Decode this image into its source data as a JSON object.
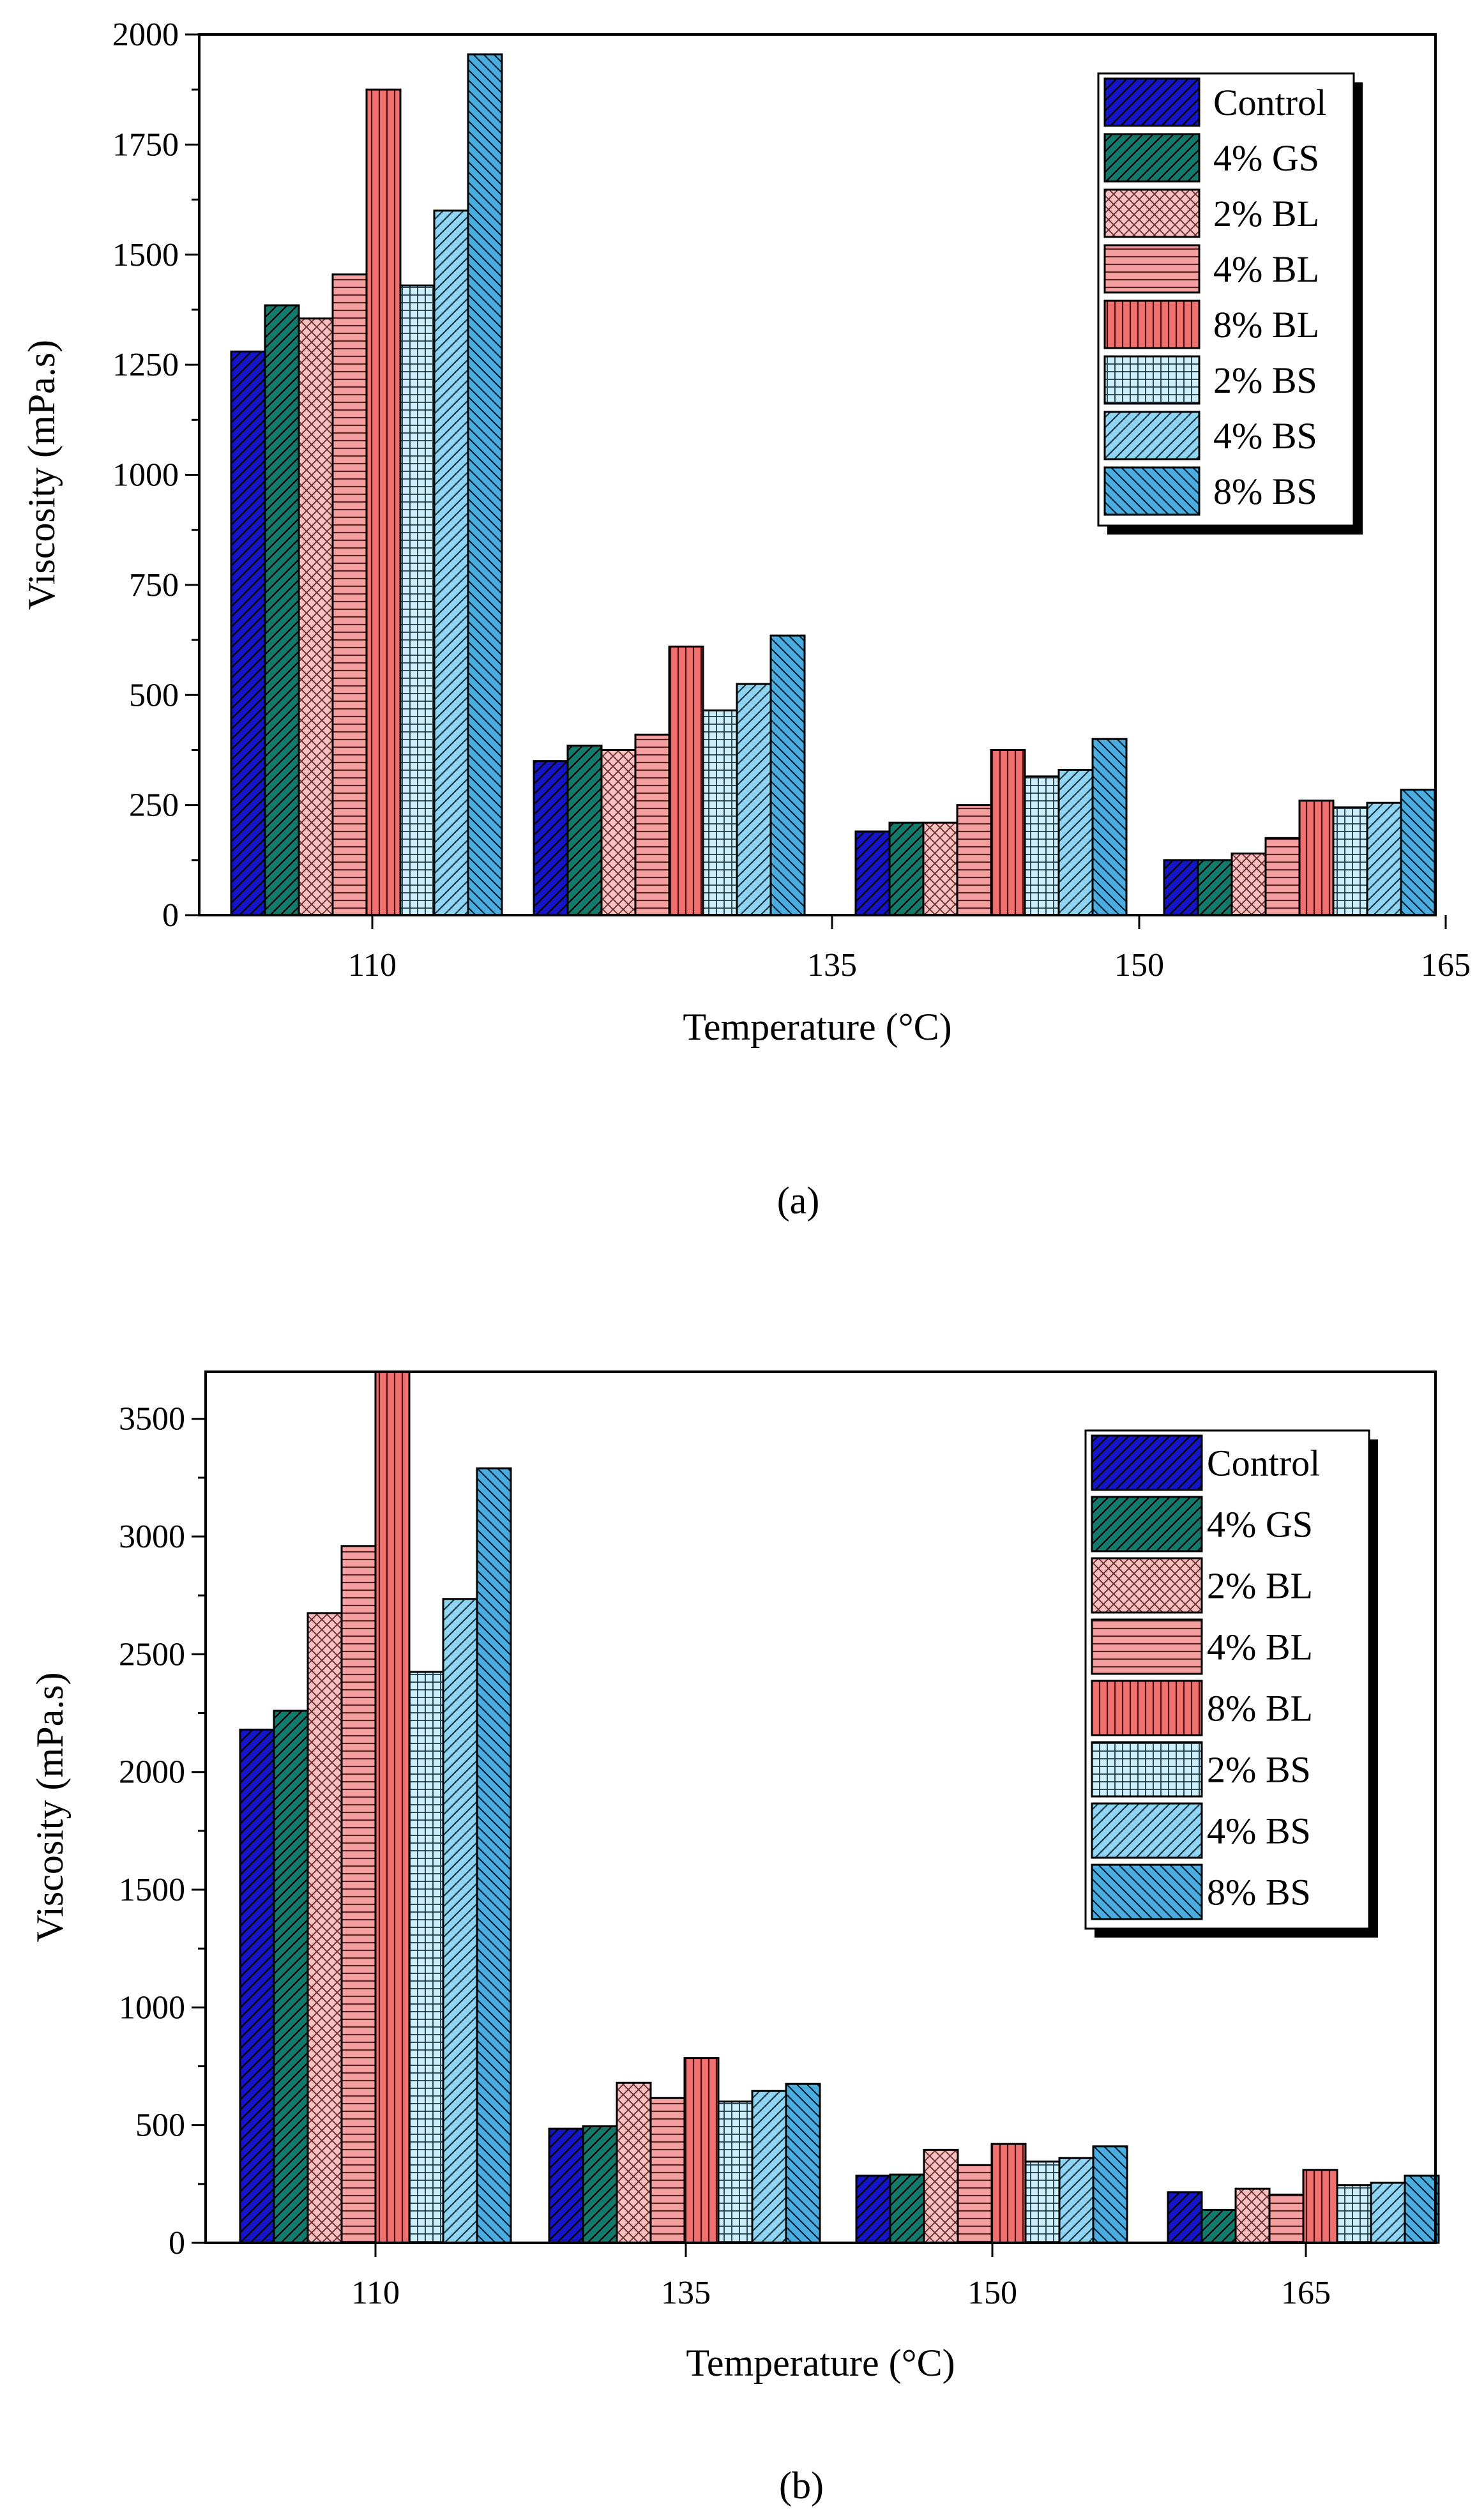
{
  "series_style": {
    "Control": {
      "fill": "#1414c8",
      "pattern": "diag-right",
      "ink": "#000000"
    },
    "4% GS": {
      "fill": "#127a6a",
      "pattern": "diag-right",
      "ink": "#000000"
    },
    "2% BL": {
      "fill": "#f7c0c0",
      "pattern": "crosshatch",
      "ink": "#6a2b2b"
    },
    "4% BL": {
      "fill": "#f4a0a0",
      "pattern": "horizontal",
      "ink": "#5a1f1f"
    },
    "8% BL": {
      "fill": "#f07070",
      "pattern": "vertical",
      "ink": "#4a1010"
    },
    "2% BS": {
      "fill": "#cdeef8",
      "pattern": "grid",
      "ink": "#1a3a4a"
    },
    "4% BS": {
      "fill": "#8fd4f0",
      "pattern": "diag-right",
      "ink": "#1a3a4a"
    },
    "8% BS": {
      "fill": "#4aaee0",
      "pattern": "diag-left",
      "ink": "#0a2030"
    }
  },
  "chart_data": [
    {
      "type": "bar",
      "panel_label": "(a)",
      "xlabel": "Temperature (°C)",
      "ylabel": "Viscosity (mPa.s)",
      "ylim": [
        0,
        2000
      ],
      "yticks": [
        0,
        250,
        500,
        750,
        1000,
        1250,
        1500,
        1750,
        2000
      ],
      "categories": [
        "110",
        "135",
        "150",
        "165"
      ],
      "legend_position": "top-right",
      "series": [
        {
          "name": "Control",
          "values": [
            1280,
            350,
            190,
            125
          ]
        },
        {
          "name": "4% GS",
          "values": [
            1385,
            385,
            210,
            125
          ]
        },
        {
          "name": "2% BL",
          "values": [
            1355,
            375,
            210,
            140
          ]
        },
        {
          "name": "4% BL",
          "values": [
            1455,
            410,
            250,
            175
          ]
        },
        {
          "name": "8% BL",
          "values": [
            1875,
            610,
            375,
            260
          ]
        },
        {
          "name": "2% BS",
          "values": [
            1430,
            465,
            315,
            245
          ]
        },
        {
          "name": "4% BS",
          "values": [
            1600,
            525,
            330,
            255
          ]
        },
        {
          "name": "8% BS",
          "values": [
            1955,
            635,
            400,
            285
          ]
        }
      ]
    },
    {
      "type": "bar",
      "panel_label": "(b)",
      "xlabel": "Temperature (°C)",
      "ylabel": "Viscosity (mPa.s)",
      "ylim": [
        0,
        3700
      ],
      "yticks": [
        0,
        500,
        1000,
        1500,
        2000,
        2500,
        3000,
        3500
      ],
      "categories": [
        "110",
        "135",
        "150",
        "165"
      ],
      "legend_position": "top-right",
      "series": [
        {
          "name": "Control",
          "values": [
            2180,
            485,
            285,
            215
          ]
        },
        {
          "name": "4% GS",
          "values": [
            2260,
            495,
            290,
            140
          ]
        },
        {
          "name": "2% BL",
          "values": [
            2675,
            680,
            395,
            230
          ]
        },
        {
          "name": "4% BL",
          "values": [
            2960,
            615,
            330,
            205
          ]
        },
        {
          "name": "8% BL",
          "values": [
            3700,
            785,
            420,
            310
          ]
        },
        {
          "name": "2% BS",
          "values": [
            2425,
            600,
            345,
            245
          ]
        },
        {
          "name": "4% BS",
          "values": [
            2735,
            645,
            360,
            255
          ]
        },
        {
          "name": "8% BS",
          "values": [
            3290,
            675,
            410,
            285
          ]
        }
      ]
    }
  ]
}
